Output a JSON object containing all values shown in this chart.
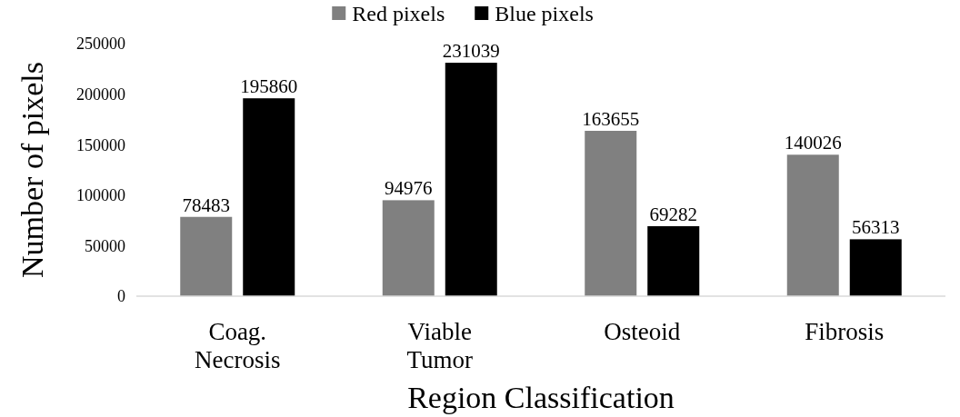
{
  "chart_data": {
    "type": "bar",
    "xlabel": "Region Classification",
    "ylabel": "Number of pixels",
    "categories": [
      "Coag. Necrosis",
      "Viable Tumor",
      "Osteoid",
      "Fibrosis"
    ],
    "series": [
      {
        "name": "Red pixels",
        "color": "#808080",
        "values": [
          78483,
          94976,
          163655,
          140026
        ]
      },
      {
        "name": "Blue pixels",
        "color": "#000000",
        "values": [
          195860,
          231039,
          69282,
          56313
        ]
      }
    ],
    "ylim": [
      0,
      250000
    ],
    "yticks": [
      0,
      50000,
      100000,
      150000,
      200000,
      250000
    ],
    "data_labels": true,
    "legend": "top",
    "grid": false
  }
}
